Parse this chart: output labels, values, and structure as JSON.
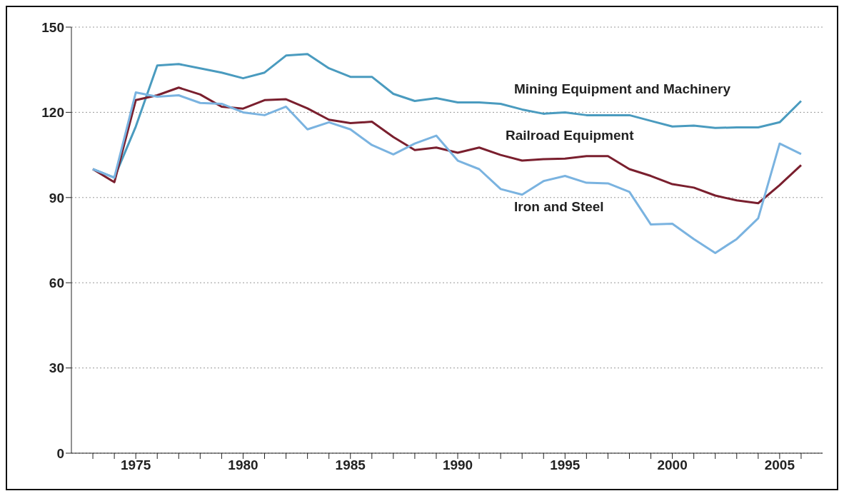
{
  "chart_data": {
    "type": "line",
    "x": [
      1973,
      1974,
      1975,
      1976,
      1977,
      1978,
      1979,
      1980,
      1981,
      1982,
      1983,
      1984,
      1985,
      1986,
      1987,
      1988,
      1989,
      1990,
      1991,
      1992,
      1993,
      1994,
      1995,
      1996,
      1997,
      1998,
      1999,
      2000,
      2001,
      2002,
      2003,
      2004,
      2005,
      2006
    ],
    "series": [
      {
        "name": "Mining Equipment and Machinery",
        "color": "#4a9bbf",
        "values": [
          100,
          97,
          115,
          136.5,
          137,
          135.5,
          134,
          132,
          134,
          140,
          140.5,
          135.5,
          132.5,
          132.5,
          126.5,
          124,
          125,
          123.5,
          123.5,
          123,
          121,
          119.5,
          120,
          119,
          119,
          119,
          117,
          115,
          115.3,
          114.5,
          114.7,
          114.7,
          116.5,
          124
        ]
      },
      {
        "name": "Railroad Equipment",
        "color": "#7a1f2e",
        "values": [
          100,
          95.4,
          124.3,
          126,
          128.7,
          126.3,
          122,
          121.3,
          124.3,
          124.6,
          121.4,
          117.4,
          116.2,
          116.7,
          111.3,
          106.7,
          107.6,
          105.8,
          107.6,
          105,
          103,
          103.5,
          103.7,
          104.6,
          104.6,
          100,
          97.6,
          94.7,
          93.5,
          90.7,
          89,
          88,
          94.4,
          101.4
        ]
      },
      {
        "name": "Iron and Steel",
        "color": "#7ab3e0",
        "values": [
          100,
          97,
          127,
          125.5,
          126,
          123.3,
          123,
          120,
          119,
          122,
          114,
          116.5,
          114,
          108.5,
          105.2,
          109,
          111.8,
          103,
          100,
          93,
          91,
          95.8,
          97.6,
          95.2,
          95,
          92,
          80.5,
          80.8,
          75.4,
          70.5,
          75.4,
          82.7,
          109,
          105.3
        ]
      }
    ],
    "xlim": [
      1972,
      2007
    ],
    "xticks": [
      {
        "value": 1973,
        "label": null
      },
      {
        "value": 1974,
        "label": null
      },
      1975,
      {
        "value": 1976,
        "label": null
      },
      {
        "value": 1977,
        "label": null
      },
      {
        "value": 1978,
        "label": null
      },
      {
        "value": 1979,
        "label": null
      },
      1980,
      {
        "value": 1981,
        "label": null
      },
      {
        "value": 1982,
        "label": null
      },
      {
        "value": 1983,
        "label": null
      },
      {
        "value": 1984,
        "label": null
      },
      1985,
      {
        "value": 1986,
        "label": null
      },
      {
        "value": 1987,
        "label": null
      },
      {
        "value": 1988,
        "label": null
      },
      {
        "value": 1989,
        "label": null
      },
      1990,
      {
        "value": 1991,
        "label": null
      },
      {
        "value": 1992,
        "label": null
      },
      {
        "value": 1993,
        "label": null
      },
      {
        "value": 1994,
        "label": null
      },
      1995,
      {
        "value": 1996,
        "label": null
      },
      {
        "value": 1997,
        "label": null
      },
      {
        "value": 1998,
        "label": null
      },
      {
        "value": 1999,
        "label": null
      },
      2000,
      {
        "value": 2001,
        "label": null
      },
      {
        "value": 2002,
        "label": null
      },
      {
        "value": 2003,
        "label": null
      },
      {
        "value": 2004,
        "label": null
      },
      2005,
      {
        "value": 2006,
        "label": null
      }
    ],
    "ylim": [
      0,
      150
    ],
    "yticks": [
      0,
      30,
      60,
      90,
      120,
      150
    ],
    "grid": "y",
    "legend": false,
    "marker": "none",
    "line_style": "solid"
  }
}
